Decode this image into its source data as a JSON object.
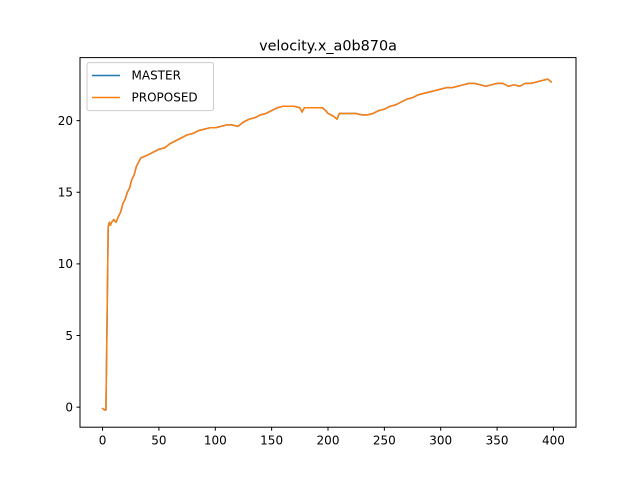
{
  "chart_data": {
    "type": "line",
    "title": "velocity.x_a0b870a",
    "xlabel": "",
    "ylabel": "",
    "xlim": [
      -20,
      420
    ],
    "ylim": [
      -1.4,
      24.4
    ],
    "xticks": [
      0,
      50,
      100,
      150,
      200,
      250,
      300,
      350,
      400
    ],
    "yticks": [
      0,
      5,
      10,
      15,
      20
    ],
    "grid": false,
    "legend_position": "top-left",
    "series": [
      {
        "name": "MASTER",
        "color": "#1f77b4",
        "points": [
          [
            0,
            -0.1
          ],
          [
            2,
            -0.2
          ],
          [
            3,
            -0.2
          ],
          [
            4,
            6.0
          ],
          [
            5,
            12.6
          ],
          [
            6,
            12.9
          ],
          [
            7,
            12.7
          ],
          [
            8,
            12.9
          ],
          [
            10,
            13.1
          ],
          [
            12,
            12.9
          ],
          [
            14,
            13.3
          ],
          [
            16,
            13.6
          ],
          [
            18,
            14.2
          ],
          [
            20,
            14.5
          ],
          [
            22,
            15.0
          ],
          [
            24,
            15.3
          ],
          [
            26,
            15.9
          ],
          [
            28,
            16.2
          ],
          [
            30,
            16.8
          ],
          [
            32,
            17.1
          ],
          [
            34,
            17.4
          ],
          [
            37,
            17.5
          ],
          [
            40,
            17.6
          ],
          [
            45,
            17.8
          ],
          [
            50,
            18.0
          ],
          [
            55,
            18.1
          ],
          [
            60,
            18.4
          ],
          [
            65,
            18.6
          ],
          [
            70,
            18.8
          ],
          [
            75,
            19.0
          ],
          [
            80,
            19.1
          ],
          [
            85,
            19.3
          ],
          [
            90,
            19.4
          ],
          [
            95,
            19.5
          ],
          [
            100,
            19.5
          ],
          [
            105,
            19.6
          ],
          [
            110,
            19.7
          ],
          [
            115,
            19.7
          ],
          [
            120,
            19.6
          ],
          [
            125,
            19.9
          ],
          [
            130,
            20.1
          ],
          [
            135,
            20.2
          ],
          [
            140,
            20.4
          ],
          [
            145,
            20.5
          ],
          [
            150,
            20.7
          ],
          [
            155,
            20.9
          ],
          [
            160,
            21.0
          ],
          [
            165,
            21.0
          ],
          [
            170,
            21.0
          ],
          [
            175,
            20.9
          ],
          [
            177,
            20.6
          ],
          [
            179,
            20.9
          ],
          [
            185,
            20.9
          ],
          [
            190,
            20.9
          ],
          [
            195,
            20.9
          ],
          [
            198,
            20.7
          ],
          [
            200,
            20.5
          ],
          [
            205,
            20.3
          ],
          [
            208,
            20.1
          ],
          [
            210,
            20.5
          ],
          [
            215,
            20.5
          ],
          [
            220,
            20.5
          ],
          [
            225,
            20.5
          ],
          [
            230,
            20.4
          ],
          [
            235,
            20.4
          ],
          [
            240,
            20.5
          ],
          [
            245,
            20.7
          ],
          [
            250,
            20.8
          ],
          [
            255,
            21.0
          ],
          [
            260,
            21.1
          ],
          [
            265,
            21.3
          ],
          [
            270,
            21.5
          ],
          [
            275,
            21.6
          ],
          [
            280,
            21.8
          ],
          [
            285,
            21.9
          ],
          [
            290,
            22.0
          ],
          [
            295,
            22.1
          ],
          [
            300,
            22.2
          ],
          [
            305,
            22.3
          ],
          [
            310,
            22.3
          ],
          [
            315,
            22.4
          ],
          [
            320,
            22.5
          ],
          [
            325,
            22.6
          ],
          [
            330,
            22.6
          ],
          [
            335,
            22.5
          ],
          [
            340,
            22.4
          ],
          [
            345,
            22.5
          ],
          [
            350,
            22.6
          ],
          [
            355,
            22.6
          ],
          [
            360,
            22.4
          ],
          [
            365,
            22.5
          ],
          [
            370,
            22.4
          ],
          [
            375,
            22.6
          ],
          [
            380,
            22.6
          ],
          [
            385,
            22.7
          ],
          [
            390,
            22.8
          ],
          [
            395,
            22.9
          ],
          [
            398,
            22.7
          ]
        ]
      },
      {
        "name": "PROPOSED",
        "color": "#ff7f0e",
        "points": [
          [
            0,
            -0.1
          ],
          [
            2,
            -0.2
          ],
          [
            3,
            -0.2
          ],
          [
            4,
            6.0
          ],
          [
            5,
            12.6
          ],
          [
            6,
            12.9
          ],
          [
            7,
            12.7
          ],
          [
            8,
            12.9
          ],
          [
            10,
            13.1
          ],
          [
            12,
            12.9
          ],
          [
            14,
            13.3
          ],
          [
            16,
            13.6
          ],
          [
            18,
            14.2
          ],
          [
            20,
            14.5
          ],
          [
            22,
            15.0
          ],
          [
            24,
            15.3
          ],
          [
            26,
            15.9
          ],
          [
            28,
            16.2
          ],
          [
            30,
            16.8
          ],
          [
            32,
            17.1
          ],
          [
            34,
            17.4
          ],
          [
            37,
            17.5
          ],
          [
            40,
            17.6
          ],
          [
            45,
            17.8
          ],
          [
            50,
            18.0
          ],
          [
            55,
            18.1
          ],
          [
            60,
            18.4
          ],
          [
            65,
            18.6
          ],
          [
            70,
            18.8
          ],
          [
            75,
            19.0
          ],
          [
            80,
            19.1
          ],
          [
            85,
            19.3
          ],
          [
            90,
            19.4
          ],
          [
            95,
            19.5
          ],
          [
            100,
            19.5
          ],
          [
            105,
            19.6
          ],
          [
            110,
            19.7
          ],
          [
            115,
            19.7
          ],
          [
            120,
            19.6
          ],
          [
            125,
            19.9
          ],
          [
            130,
            20.1
          ],
          [
            135,
            20.2
          ],
          [
            140,
            20.4
          ],
          [
            145,
            20.5
          ],
          [
            150,
            20.7
          ],
          [
            155,
            20.9
          ],
          [
            160,
            21.0
          ],
          [
            165,
            21.0
          ],
          [
            170,
            21.0
          ],
          [
            175,
            20.9
          ],
          [
            177,
            20.6
          ],
          [
            179,
            20.9
          ],
          [
            185,
            20.9
          ],
          [
            190,
            20.9
          ],
          [
            195,
            20.9
          ],
          [
            198,
            20.7
          ],
          [
            200,
            20.5
          ],
          [
            205,
            20.3
          ],
          [
            208,
            20.1
          ],
          [
            210,
            20.5
          ],
          [
            215,
            20.5
          ],
          [
            220,
            20.5
          ],
          [
            225,
            20.5
          ],
          [
            230,
            20.4
          ],
          [
            235,
            20.4
          ],
          [
            240,
            20.5
          ],
          [
            245,
            20.7
          ],
          [
            250,
            20.8
          ],
          [
            255,
            21.0
          ],
          [
            260,
            21.1
          ],
          [
            265,
            21.3
          ],
          [
            270,
            21.5
          ],
          [
            275,
            21.6
          ],
          [
            280,
            21.8
          ],
          [
            285,
            21.9
          ],
          [
            290,
            22.0
          ],
          [
            295,
            22.1
          ],
          [
            300,
            22.2
          ],
          [
            305,
            22.3
          ],
          [
            310,
            22.3
          ],
          [
            315,
            22.4
          ],
          [
            320,
            22.5
          ],
          [
            325,
            22.6
          ],
          [
            330,
            22.6
          ],
          [
            335,
            22.5
          ],
          [
            340,
            22.4
          ],
          [
            345,
            22.5
          ],
          [
            350,
            22.6
          ],
          [
            355,
            22.6
          ],
          [
            360,
            22.4
          ],
          [
            365,
            22.5
          ],
          [
            370,
            22.4
          ],
          [
            375,
            22.6
          ],
          [
            380,
            22.6
          ],
          [
            385,
            22.7
          ],
          [
            390,
            22.8
          ],
          [
            395,
            22.9
          ],
          [
            398,
            22.7
          ]
        ]
      }
    ]
  }
}
